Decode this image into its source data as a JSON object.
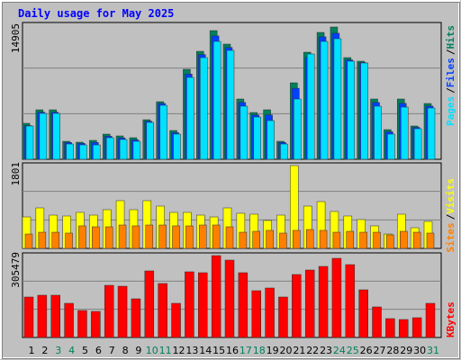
{
  "chart_data": [
    {
      "type": "bar",
      "title": "Daily usage for May 2025",
      "separator": "/",
      "ylim": [
        0,
        15413
      ],
      "yticks": [
        14905
      ],
      "series": [
        {
          "name": "Hits",
          "color": "#00805c",
          "values": [
            4056,
            5577,
            5577,
            2028,
            1927,
            2129,
            2839,
            2636,
            2433,
            4461,
            6489,
            3245,
            10139,
            12167,
            14499,
            12978,
            6793,
            5272,
            5577,
            2028,
            8618,
            12066,
            14296,
            14905,
            11457,
            11052,
            6793,
            3346,
            6793,
            3752,
            6286
          ]
        },
        {
          "name": "Files",
          "color": "#0040ff",
          "values": [
            3800,
            5300,
            5300,
            1900,
            1800,
            1900,
            2600,
            2400,
            2200,
            4300,
            6300,
            3000,
            9600,
            11800,
            13900,
            12600,
            6400,
            5000,
            5000,
            1900,
            8000,
            11500,
            13800,
            14200,
            11200,
            10900,
            6400,
            3100,
            6300,
            3600,
            6000
          ]
        },
        {
          "name": "Pages",
          "color": "#00e0ff",
          "values": [
            3752,
            5171,
            5171,
            1724,
            1622,
            1622,
            2434,
            2231,
            2028,
            4157,
            6084,
            2839,
            9227,
            11458,
            13283,
            12269,
            5983,
            4766,
            4360,
            1724,
            6794,
            11864,
            13283,
            13588,
            11053,
            10850,
            5983,
            2839,
            5881,
            3448,
            5780
          ]
        }
      ]
    },
    {
      "type": "bar",
      "separator": "/",
      "ylim": [
        0,
        1860
      ],
      "yticks": [
        1801
      ],
      "series": [
        {
          "name": "Visits",
          "color": "#ffff00",
          "values": [
            685,
            881,
            724,
            705,
            783,
            724,
            842,
            1038,
            842,
            1038,
            920,
            783,
            783,
            724,
            685,
            881,
            764,
            744,
            607,
            724,
            1801,
            920,
            1018,
            803,
            705,
            627,
            490,
            313,
            744,
            450,
            587
          ]
        },
        {
          "name": "Sites",
          "color": "#ff8000",
          "values": [
            313,
            352,
            352,
            333,
            490,
            470,
            470,
            509,
            490,
            509,
            509,
            490,
            490,
            509,
            509,
            470,
            352,
            372,
            392,
            333,
            392,
            411,
            392,
            352,
            372,
            352,
            352,
            294,
            372,
            352,
            333
          ]
        }
      ]
    },
    {
      "type": "bar",
      "ylim": [
        0,
        315558
      ],
      "yticks": [
        305479
      ],
      "categories": [
        "1",
        "2",
        "3",
        "4",
        "5",
        "6",
        "7",
        "8",
        "9",
        "10",
        "11",
        "12",
        "13",
        "14",
        "15",
        "16",
        "17",
        "18",
        "19",
        "20",
        "21",
        "22",
        "23",
        "24",
        "25",
        "26",
        "27",
        "28",
        "29",
        "30",
        "31"
      ],
      "category_colors": [
        "#000000",
        "#000000",
        "#00805c",
        "#00805c",
        "#000000",
        "#000000",
        "#000000",
        "#000000",
        "#000000",
        "#00805c",
        "#00805c",
        "#000000",
        "#000000",
        "#000000",
        "#000000",
        "#000000",
        "#00805c",
        "#00805c",
        "#000000",
        "#000000",
        "#000000",
        "#000000",
        "#000000",
        "#00805c",
        "#00805c",
        "#000000",
        "#000000",
        "#000000",
        "#000000",
        "#000000",
        "#00805c"
      ],
      "series": [
        {
          "name": "KBytes",
          "color": "#ff0000",
          "values": [
            151065,
            157779,
            157779,
            127566,
            100710,
            97353,
            194706,
            191349,
            144351,
            248418,
            201420,
            127566,
            245061,
            241704,
            305479,
            288702,
            241704,
            174564,
            184635,
            151065,
            234990,
            251775,
            265203,
            295416,
            271917,
            177921,
            114138,
            70497,
            67140,
            73854,
            127566
          ]
        }
      ]
    }
  ]
}
